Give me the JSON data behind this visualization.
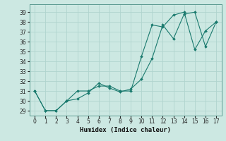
{
  "xlabel": "Humidex (Indice chaleur)",
  "ylabel": "",
  "bg_color": "#cce8e2",
  "line_color": "#1a7a6e",
  "grid_color": "#b0d4ce",
  "xlim": [
    -0.5,
    17.5
  ],
  "ylim": [
    28.5,
    39.8
  ],
  "yticks": [
    29,
    30,
    31,
    32,
    33,
    34,
    35,
    36,
    37,
    38,
    39
  ],
  "xticks": [
    0,
    1,
    2,
    3,
    4,
    5,
    6,
    7,
    8,
    9,
    10,
    11,
    12,
    13,
    14,
    15,
    16,
    17
  ],
  "series1_x": [
    0,
    1,
    2,
    3,
    4,
    5,
    6,
    7,
    8,
    9,
    10,
    11,
    12,
    13,
    14,
    15,
    16,
    17
  ],
  "series1_y": [
    31,
    29,
    29,
    30,
    31,
    31,
    31.5,
    31.5,
    31,
    31,
    34.5,
    37.7,
    37.5,
    38.7,
    39.0,
    35.2,
    37.1,
    38.0
  ],
  "series2_x": [
    0,
    1,
    2,
    3,
    4,
    5,
    6,
    7,
    8,
    9,
    10,
    11,
    12,
    13,
    14,
    15,
    16,
    17
  ],
  "series2_y": [
    31,
    29,
    29,
    30,
    30.2,
    30.8,
    31.8,
    31.3,
    30.9,
    31.2,
    32.2,
    34.3,
    37.7,
    36.3,
    38.8,
    39.0,
    35.5,
    38.0
  ],
  "tick_fontsize": 5.5,
  "xlabel_fontsize": 6.5
}
